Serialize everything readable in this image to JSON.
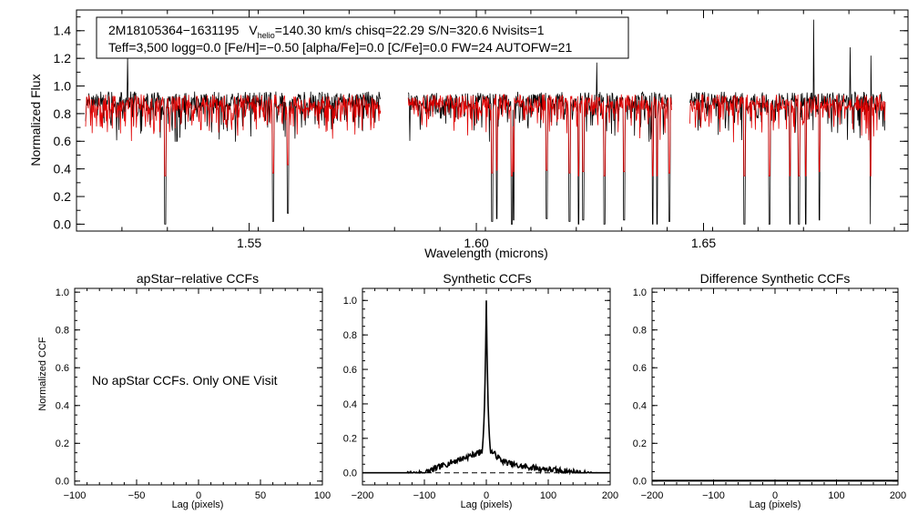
{
  "chart_data": [
    {
      "type": "line",
      "id": "spectrum",
      "info_line1": {
        "star": "2M18105364−1631195",
        "v_symbol": "V",
        "v_sub": "helio",
        "v_rest": "=140.30 km/s  chisq=22.29  S/N=320.6  Nvisits=1"
      },
      "info_line2": "Teff=3,500 logg=0.0 [Fe/H]=−0.50 [alpha/Fe]=0.0 [C/Fe]=0.0 FW=24 AUTOFW=21",
      "xlabel": "Wavelength (microns)",
      "ylabel": "Normalized Flux",
      "xlim": [
        1.512,
        1.695
      ],
      "ylim": [
        -0.05,
        1.55
      ],
      "x_ticks": [
        "1.55",
        "1.60",
        "1.65"
      ],
      "x_tick_values": [
        1.55,
        1.6,
        1.65
      ],
      "y_ticks": [
        "0.0",
        "0.2",
        "0.4",
        "0.6",
        "0.8",
        "1.0",
        "1.2",
        "1.4"
      ],
      "y_tick_values": [
        0.0,
        0.2,
        0.4,
        0.6,
        0.8,
        1.0,
        1.2,
        1.4
      ],
      "segments": [
        [
          1.514,
          1.579
        ],
        [
          1.585,
          1.643
        ],
        [
          1.647,
          1.69
        ]
      ],
      "series": [
        {
          "color": "#000000",
          "continuum": 0.9,
          "noise": 0.09
        },
        {
          "color": "#e00000",
          "continuum": 0.88,
          "noise": 0.08
        }
      ],
      "absorption_lines": [
        [
          1.5315,
          0.0
        ],
        [
          1.5553,
          0.02
        ],
        [
          1.5585,
          0.08
        ],
        [
          1.6035,
          0.02
        ],
        [
          1.6045,
          0.04
        ],
        [
          1.6078,
          0.0
        ],
        [
          1.6082,
          0.03
        ],
        [
          1.6155,
          0.04
        ],
        [
          1.6205,
          0.02
        ],
        [
          1.6225,
          0.0
        ],
        [
          1.6235,
          0.03
        ],
        [
          1.6282,
          0.0
        ],
        [
          1.6325,
          0.03
        ],
        [
          1.6388,
          0.0
        ],
        [
          1.6398,
          0.0
        ],
        [
          1.6425,
          0.02
        ],
        [
          1.659,
          0.0
        ],
        [
          1.6645,
          0.0
        ],
        [
          1.669,
          0.0
        ],
        [
          1.671,
          0.0
        ],
        [
          1.6725,
          0.0
        ],
        [
          1.6755,
          0.03
        ],
        [
          1.6868,
          0.0
        ]
      ],
      "emission_spikes": [
        [
          1.5232,
          1.22
        ],
        [
          1.6265,
          1.17
        ],
        [
          1.644,
          1.36
        ],
        [
          1.6742,
          1.48
        ],
        [
          1.6823,
          1.28
        ],
        [
          1.6868,
          1.22
        ]
      ]
    },
    {
      "type": "line",
      "id": "apstar-ccf",
      "title": "apStar−relative CCFs",
      "xlabel": "Lag (pixels)",
      "ylabel": "Normalized CCF",
      "xlim": [
        -100,
        100
      ],
      "ylim": [
        -0.02,
        1.02
      ],
      "x_ticks": [
        "−100",
        "−50",
        "0",
        "50",
        "100"
      ],
      "x_tick_values": [
        -100,
        -50,
        0,
        50,
        100
      ],
      "y_ticks": [
        "0.0",
        "0.2",
        "0.4",
        "0.6",
        "0.8",
        "1.0"
      ],
      "y_tick_values": [
        0.0,
        0.2,
        0.4,
        0.6,
        0.8,
        1.0
      ],
      "message": "No apStar CCFs.  Only ONE Visit"
    },
    {
      "type": "line",
      "id": "synthetic-ccf",
      "title": "Synthetic CCFs",
      "xlabel": "Lag (pixels)",
      "xlim": [
        -200,
        200
      ],
      "ylim": [
        -0.07,
        1.07
      ],
      "x_ticks": [
        "−200",
        "−100",
        "0",
        "100",
        "200"
      ],
      "x_tick_values": [
        -200,
        -100,
        0,
        100,
        200
      ],
      "y_ticks": [
        "0.0",
        "0.2",
        "0.4",
        "0.6",
        "0.8",
        "1.0"
      ],
      "y_tick_values": [
        0.0,
        0.2,
        0.4,
        0.6,
        0.8,
        1.0
      ],
      "peak_lag": 0,
      "peak_value": 1.0,
      "baseline": 0.0,
      "wing_points": [
        [
          -200,
          -0.03
        ],
        [
          -150,
          -0.02
        ],
        [
          -100,
          0.0
        ],
        [
          -50,
          0.07
        ],
        [
          -25,
          0.1
        ],
        [
          -10,
          0.12
        ],
        [
          10,
          0.12
        ],
        [
          25,
          0.07
        ],
        [
          50,
          0.04
        ],
        [
          100,
          0.02
        ],
        [
          150,
          0.0
        ],
        [
          200,
          -0.03
        ]
      ]
    },
    {
      "type": "line",
      "id": "difference-ccf",
      "title": "Difference Synthetic CCFs",
      "xlabel": "Lag (pixels)",
      "xlim": [
        -200,
        200
      ],
      "ylim": [
        -0.02,
        1.02
      ],
      "x_ticks": [
        "−200",
        "−100",
        "0",
        "100",
        "200"
      ],
      "x_tick_values": [
        -200,
        -100,
        0,
        100,
        200
      ],
      "y_ticks": [
        "0.0",
        "0.2",
        "0.4",
        "0.6",
        "0.8",
        "1.0"
      ],
      "y_tick_values": [
        0.0,
        0.2,
        0.4,
        0.6,
        0.8,
        1.0
      ],
      "flat_value": 0.0
    }
  ]
}
